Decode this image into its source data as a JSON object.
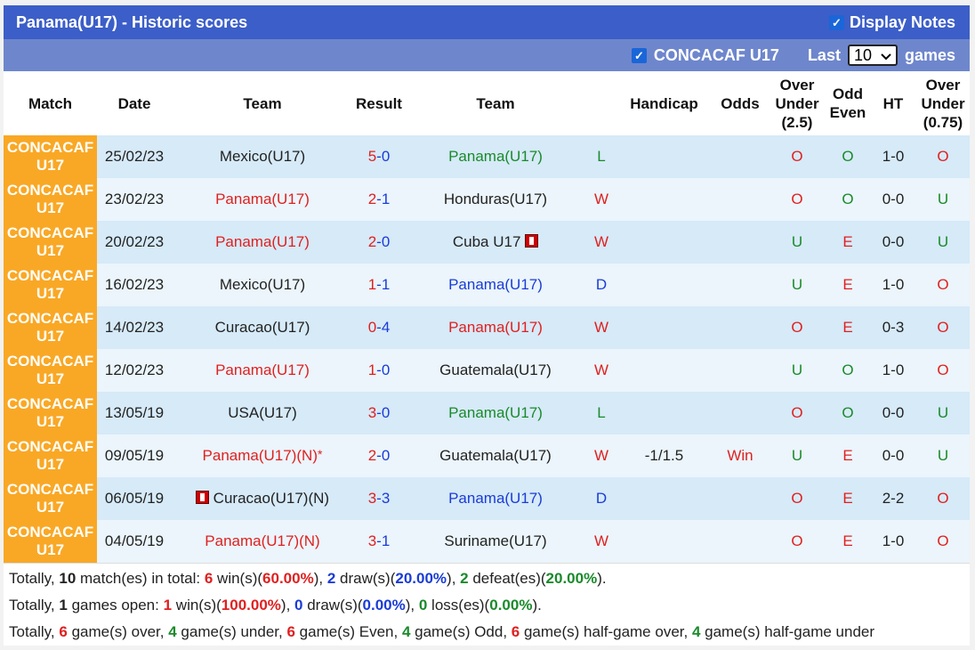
{
  "header": {
    "title": "Panama(U17) - Historic scores",
    "display_notes_label": "Display Notes"
  },
  "filter": {
    "league_label": "CONCACAF U17",
    "last_label": "Last",
    "last_value": "10",
    "games_label": "games"
  },
  "columns": {
    "match": "Match",
    "date": "Date",
    "team": "Team",
    "result": "Result",
    "team2": "Team",
    "handicap": "Handicap",
    "odds": "Odds",
    "ou_l1": "Over",
    "ou_l2": "Under",
    "ou_l3": "(2.5)",
    "oe_l1": "Odd",
    "oe_l2": "Even",
    "ht": "HT",
    "ou2_l1": "Over",
    "ou2_l2": "Under",
    "ou2_l3": "(0.75)"
  },
  "rows": [
    {
      "league_l1": "CONCACAF",
      "league_l2": "U17",
      "date": "25/02/23",
      "home": "Mexico(U17)",
      "home_extra": "",
      "home_color": "#222222",
      "hs": "5",
      "sep": "-",
      "as": "0",
      "away": "Panama(U17)",
      "away_color": "#1a8a2a",
      "wdl": "L",
      "wdl_color": "#1a8a2a",
      "handicap": "",
      "odds": "",
      "ou": "O",
      "ou_color": "#e02020",
      "oe": "O",
      "oe_color": "#1a8a2a",
      "ht": "1-0",
      "ou2": "O",
      "ou2_color": "#e02020"
    },
    {
      "league_l1": "CONCACAF",
      "league_l2": "U17",
      "date": "23/02/23",
      "home": "Panama(U17)",
      "home_extra": "",
      "home_color": "#e02020",
      "hs": "2",
      "sep": "-",
      "as": "1",
      "away": "Honduras(U17)",
      "away_color": "#222222",
      "wdl": "W",
      "wdl_color": "#e02020",
      "handicap": "",
      "odds": "",
      "ou": "O",
      "ou_color": "#e02020",
      "oe": "O",
      "oe_color": "#1a8a2a",
      "ht": "0-0",
      "ou2": "U",
      "ou2_color": "#1a8a2a"
    },
    {
      "league_l1": "CONCACAF",
      "league_l2": "U17",
      "date": "20/02/23",
      "home": "Panama(U17)",
      "home_extra": "",
      "home_color": "#e02020",
      "hs": "2",
      "sep": "-",
      "as": "0",
      "away": "Cuba U17",
      "away_color": "#222222",
      "wdl": "W",
      "wdl_color": "#e02020",
      "handicap": "",
      "odds": "",
      "ou": "U",
      "ou_color": "#1a8a2a",
      "oe": "E",
      "oe_color": "#e02020",
      "ht": "0-0",
      "ou2": "U",
      "ou2_color": "#1a8a2a"
    },
    {
      "league_l1": "CONCACAF",
      "league_l2": "U17",
      "date": "16/02/23",
      "home": "Mexico(U17)",
      "home_extra": "",
      "home_color": "#222222",
      "hs": "1",
      "sep": "-",
      "as": "1",
      "away": "Panama(U17)",
      "away_color": "#1a3cd6",
      "wdl": "D",
      "wdl_color": "#1a3cd6",
      "handicap": "",
      "odds": "",
      "ou": "U",
      "ou_color": "#1a8a2a",
      "oe": "E",
      "oe_color": "#e02020",
      "ht": "1-0",
      "ou2": "O",
      "ou2_color": "#e02020"
    },
    {
      "league_l1": "CONCACAF",
      "league_l2": "U17",
      "date": "14/02/23",
      "home": "Curacao(U17)",
      "home_extra": "",
      "home_color": "#222222",
      "hs": "0",
      "sep": "-",
      "as": "4",
      "away": "Panama(U17)",
      "away_color": "#e02020",
      "wdl": "W",
      "wdl_color": "#e02020",
      "handicap": "",
      "odds": "",
      "ou": "O",
      "ou_color": "#e02020",
      "oe": "E",
      "oe_color": "#e02020",
      "ht": "0-3",
      "ou2": "O",
      "ou2_color": "#e02020"
    },
    {
      "league_l1": "CONCACAF",
      "league_l2": "U17",
      "date": "12/02/23",
      "home": "Panama(U17)",
      "home_extra": "",
      "home_color": "#e02020",
      "hs": "1",
      "sep": "-",
      "as": "0",
      "away": "Guatemala(U17)",
      "away_color": "#222222",
      "wdl": "W",
      "wdl_color": "#e02020",
      "handicap": "",
      "odds": "",
      "ou": "U",
      "ou_color": "#1a8a2a",
      "oe": "O",
      "oe_color": "#1a8a2a",
      "ht": "1-0",
      "ou2": "O",
      "ou2_color": "#e02020"
    },
    {
      "league_l1": "CONCACAF",
      "league_l2": "U17",
      "date": "13/05/19",
      "home": "USA(U17)",
      "home_extra": "",
      "home_color": "#222222",
      "hs": "3",
      "sep": "-",
      "as": "0",
      "away": "Panama(U17)",
      "away_color": "#1a8a2a",
      "wdl": "L",
      "wdl_color": "#1a8a2a",
      "handicap": "",
      "odds": "",
      "ou": "O",
      "ou_color": "#e02020",
      "oe": "O",
      "oe_color": "#1a8a2a",
      "ht": "0-0",
      "ou2": "U",
      "ou2_color": "#1a8a2a"
    },
    {
      "league_l1": "CONCACAF",
      "league_l2": "U17",
      "date": "09/05/19",
      "home": "Panama(U17)",
      "home_extra": "(N)",
      "home_color": "#e02020",
      "hs": "2",
      "sep": "-",
      "as": "0",
      "away": "Guatemala(U17)",
      "away_color": "#222222",
      "wdl": "W",
      "wdl_color": "#e02020",
      "handicap": "-1/1.5",
      "odds": "Win",
      "ou": "U",
      "ou_color": "#1a8a2a",
      "oe": "E",
      "oe_color": "#e02020",
      "ht": "0-0",
      "ou2": "U",
      "ou2_color": "#1a8a2a"
    },
    {
      "league_l1": "CONCACAF",
      "league_l2": "U17",
      "date": "06/05/19",
      "home": "Curacao(U17)",
      "home_extra": "(N)",
      "home_color": "#222222",
      "hs": "3",
      "sep": "-",
      "as": "3",
      "away": "Panama(U17)",
      "away_color": "#1a3cd6",
      "wdl": "D",
      "wdl_color": "#1a3cd6",
      "handicap": "",
      "odds": "",
      "ou": "O",
      "ou_color": "#e02020",
      "oe": "E",
      "oe_color": "#e02020",
      "ht": "2-2",
      "ou2": "O",
      "ou2_color": "#e02020"
    },
    {
      "league_l1": "CONCACAF",
      "league_l2": "U17",
      "date": "04/05/19",
      "home": "Panama(U17)",
      "home_extra": "(N)",
      "home_color": "#e02020",
      "hs": "3",
      "sep": "-",
      "as": "1",
      "away": "Suriname(U17)",
      "away_color": "#222222",
      "wdl": "W",
      "wdl_color": "#e02020",
      "handicap": "",
      "odds": "",
      "ou": "O",
      "ou_color": "#e02020",
      "oe": "E",
      "oe_color": "#e02020",
      "ht": "1-0",
      "ou2": "O",
      "ou2_color": "#e02020"
    }
  ],
  "neutral_mark": "*",
  "summary": {
    "line1": {
      "p1": "Totally, ",
      "total": "10",
      "p2": " match(es) in total: ",
      "wins": "6",
      "p3": " win(s)(",
      "win_pct": "60.00%",
      "p4": "), ",
      "draws": "2",
      "p5": " draw(s)(",
      "draw_pct": "20.00%",
      "p6": "), ",
      "defeats": "2",
      "p7": " defeat(es)(",
      "defeat_pct": "20.00%",
      "p8": ")."
    },
    "line2": {
      "p1": "Totally, ",
      "open": "1",
      "p2": " games open: ",
      "wins": "1",
      "p3": " win(s)(",
      "win_pct": "100.00%",
      "p4": "), ",
      "draws": "0",
      "p5": " draw(s)(",
      "draw_pct": "0.00%",
      "p6": "), ",
      "losses": "0",
      "p7": " loss(es)(",
      "loss_pct": "0.00%",
      "p8": ")."
    },
    "line3": {
      "p1": "Totally, ",
      "over": "6",
      "p2": " game(s) over, ",
      "under": "4",
      "p3": " game(s) under, ",
      "even": "6",
      "p4": " game(s) Even, ",
      "odd": "4",
      "p5": " game(s) Odd, ",
      "half_over": "6",
      "p6": " game(s) half-game over, ",
      "half_under": "4",
      "p7": " game(s) half-game under"
    }
  }
}
